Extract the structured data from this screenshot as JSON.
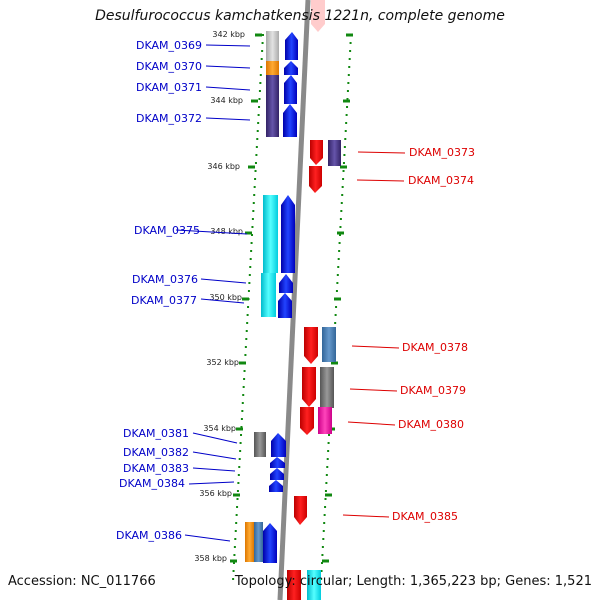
{
  "title": "Desulfurococcus kamchatkensis 1221n, complete genome",
  "accession": "Accession: NC_011766",
  "topology": "Topology: circular; Length: 1,365,223 bp; Genes: 1,521",
  "colors": {
    "forward_label": "#0000c8",
    "reverse_label": "#dd0000",
    "forward_gene": "#0000ff",
    "reverse_gene": "#ff0000",
    "backbone": "#888888",
    "tick": "#118811"
  },
  "kbp_marks": [
    "342 kbp",
    "344 kbp",
    "346 kbp",
    "348 kbp",
    "350 kbp",
    "352 kbp",
    "354 kbp",
    "356 kbp",
    "358 kbp"
  ],
  "forward_labels": [
    "DKAM_0369",
    "DKAM_0370",
    "DKAM_0371",
    "DKAM_0372",
    "DKAM_0375",
    "DKAM_0376",
    "DKAM_0377",
    "DKAM_0381",
    "DKAM_0382",
    "DKAM_0383",
    "DKAM_0384",
    "DKAM_0386"
  ],
  "reverse_labels": [
    "DKAM_0373",
    "DKAM_0374",
    "DKAM_0378",
    "DKAM_0379",
    "DKAM_0380",
    "DKAM_0385"
  ]
}
